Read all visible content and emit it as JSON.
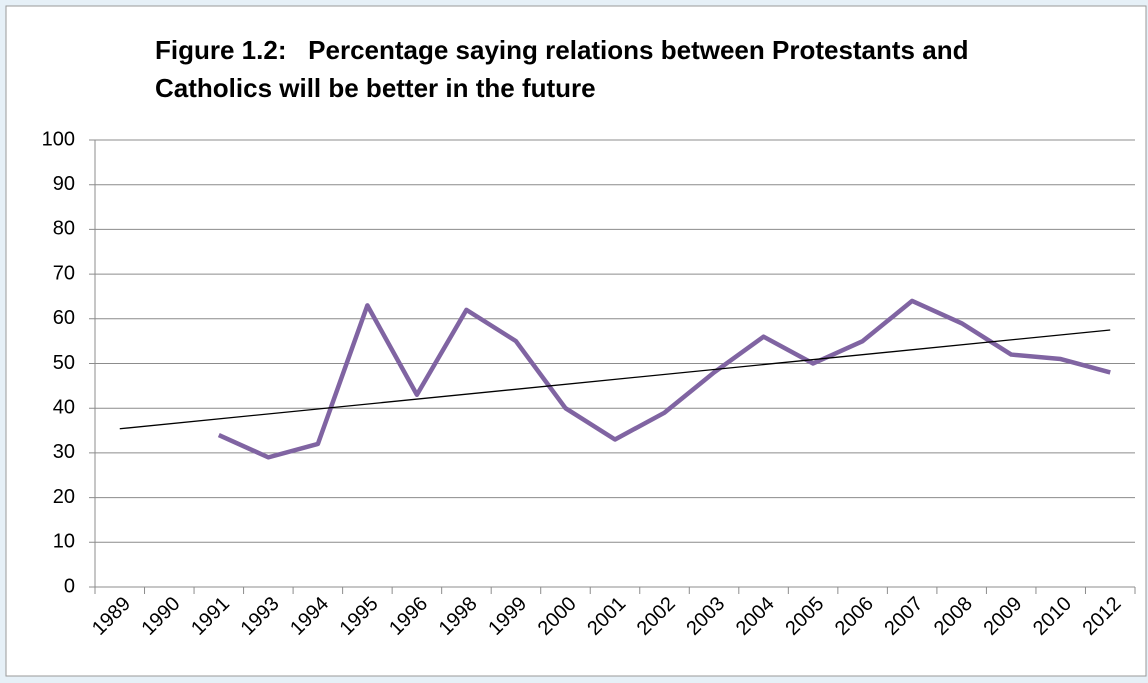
{
  "chart_data": {
    "type": "line",
    "title": [
      "Figure 1.2:   Percentage saying relations between Protestants and",
      "Catholics will be better in the future"
    ],
    "categories": [
      "1989",
      "1990",
      "1991",
      "1993",
      "1994",
      "1995",
      "1996",
      "1998",
      "1999",
      "2000",
      "2001",
      "2002",
      "2003",
      "2004",
      "2005",
      "2006",
      "2007",
      "2008",
      "2009",
      "2010",
      "2012"
    ],
    "series": [
      {
        "color": "#8064a2",
        "values": [
          null,
          null,
          34,
          29,
          32,
          63,
          43,
          62,
          55,
          40,
          33,
          39,
          48,
          56,
          50,
          55,
          64,
          59,
          52,
          51,
          48
        ]
      }
    ],
    "trendline": {
      "color": "#000000",
      "values": [
        35.4,
        57.5
      ]
    },
    "ylim": [
      0,
      100
    ],
    "yticks": [
      0,
      10,
      20,
      30,
      40,
      50,
      60,
      70,
      80,
      90,
      100
    ],
    "grid": true
  }
}
